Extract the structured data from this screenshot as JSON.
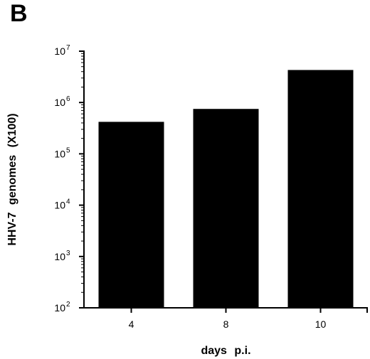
{
  "panel_label": "B",
  "colors": {
    "bar": "#000000",
    "axis": "#000000",
    "background": "#ffffff"
  },
  "chart_data": {
    "type": "bar",
    "categories": [
      "4",
      "8",
      "10"
    ],
    "values": [
      420000,
      750000,
      4300000
    ],
    "title": "",
    "xlabel": "days p.i.",
    "ylabel": "HHV-7 genomes (X100)",
    "yscale": "log",
    "ylim": [
      100,
      10000000
    ],
    "yticks": [
      {
        "base": "10",
        "exp": "2"
      },
      {
        "base": "10",
        "exp": "3"
      },
      {
        "base": "10",
        "exp": "4"
      },
      {
        "base": "10",
        "exp": "5"
      },
      {
        "base": "10",
        "exp": "6"
      },
      {
        "base": "10",
        "exp": "7"
      }
    ],
    "grid": false,
    "legend": "none"
  }
}
